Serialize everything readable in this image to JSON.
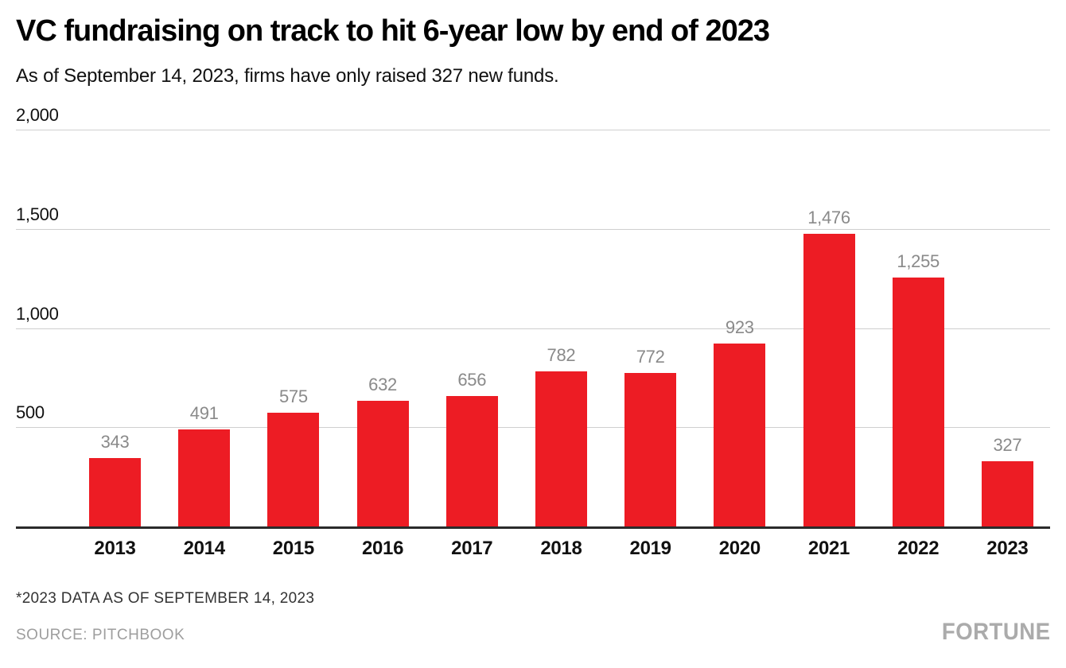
{
  "page": {
    "title": "VC fundraising on track to hit 6-year low by end of 2023",
    "subtitle": "As of September 14, 2023, firms have only raised 327 new funds."
  },
  "chart_data": {
    "type": "bar",
    "title": "VC fundraising on track to hit 6-year low by end of 2023",
    "subtitle": "As of September 14, 2023, firms have only raised 327 new funds.",
    "categories": [
      "2013",
      "2014",
      "2015",
      "2016",
      "2017",
      "2018",
      "2019",
      "2020",
      "2021",
      "2022",
      "2023"
    ],
    "values": [
      343,
      491,
      575,
      632,
      656,
      782,
      772,
      923,
      1476,
      1255,
      327
    ],
    "value_labels": [
      "343",
      "491",
      "575",
      "632",
      "656",
      "782",
      "772",
      "923",
      "1,476",
      "1,255",
      "327"
    ],
    "xlabel": "",
    "ylabel": "",
    "ylim": [
      0,
      2000
    ],
    "yticks": [
      {
        "value": 2000,
        "label": "2,000"
      },
      {
        "value": 1500,
        "label": "1,500"
      },
      {
        "value": 1000,
        "label": "1,000"
      },
      {
        "value": 500,
        "label": "500"
      }
    ],
    "grid": true,
    "legend": "none",
    "bar_color": "#ED1C24"
  },
  "footer": {
    "note": "*2023 DATA AS OF SEPTEMBER 14, 2023",
    "source": "SOURCE: PITCHBOOK",
    "brand": "FORTUNE"
  },
  "colors": {
    "bar": "#ED1C24",
    "grid": "#CFCFCF",
    "axis": "#2B2B2B",
    "text": "#111111",
    "value_label": "#8A8A8A",
    "muted": "#9E9E9E",
    "brand": "#ABABAB"
  }
}
